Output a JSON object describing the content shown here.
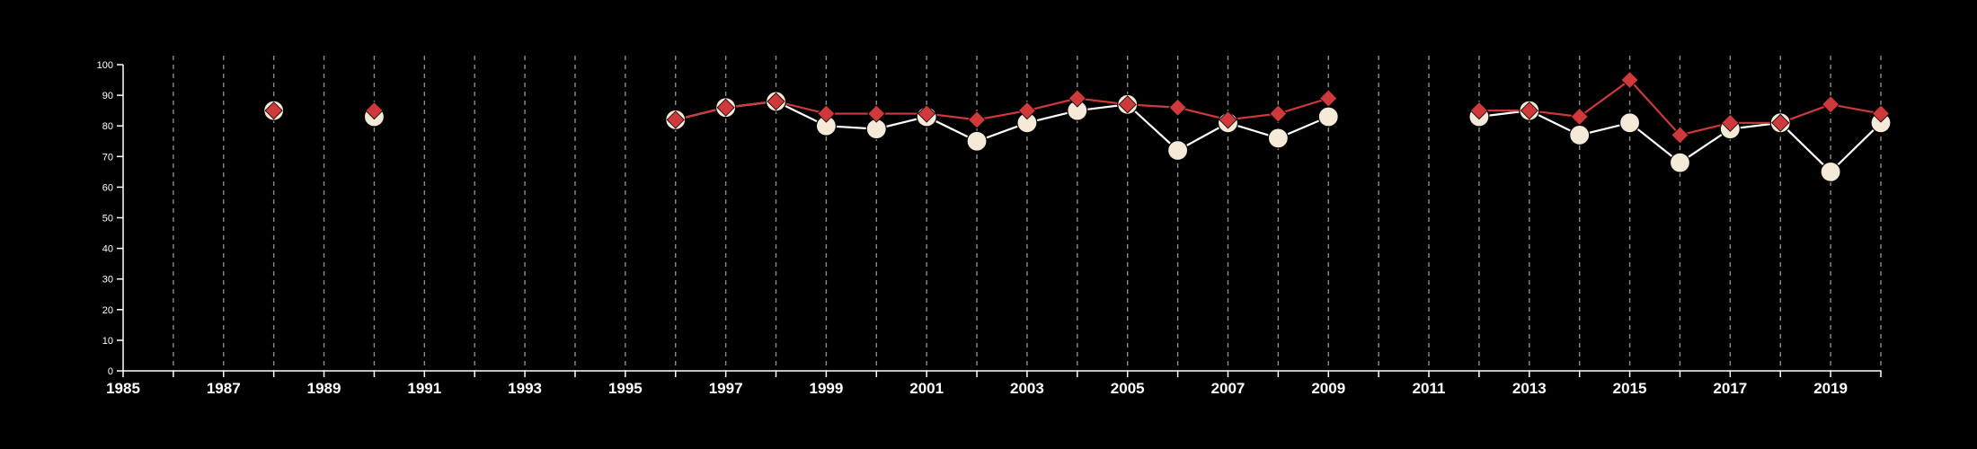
{
  "chart_data": {
    "type": "line",
    "title": "",
    "xlabel": "",
    "ylabel": "",
    "xlim": [
      1985,
      2020
    ],
    "ylim": [
      0,
      100
    ],
    "x_tick_labels": [
      "1985",
      "1987",
      "1989",
      "1991",
      "1993",
      "1995",
      "1997",
      "1999",
      "2001",
      "2003",
      "2005",
      "2007",
      "2009",
      "2011",
      "2013",
      "2015",
      "2017",
      "2019"
    ],
    "y_tick_labels": [
      "0",
      "10",
      "20",
      "30",
      "40",
      "50",
      "60",
      "70",
      "80",
      "90",
      "100"
    ],
    "grid": "vertical dashed lines at each year",
    "series": [
      {
        "marker": "circle",
        "color": "#f5ead7",
        "line_color": "#ffffff",
        "points": [
          [
            1988,
            85
          ],
          [
            1990,
            83
          ],
          [
            1996,
            82
          ],
          [
            1997,
            86
          ],
          [
            1998,
            88
          ],
          [
            1999,
            80
          ],
          [
            2000,
            79
          ],
          [
            2001,
            83
          ],
          [
            2002,
            75
          ],
          [
            2003,
            81
          ],
          [
            2004,
            85
          ],
          [
            2005,
            87
          ],
          [
            2006,
            72
          ],
          [
            2007,
            81
          ],
          [
            2008,
            76
          ],
          [
            2009,
            83
          ],
          [
            2012,
            83
          ],
          [
            2013,
            85
          ],
          [
            2014,
            77
          ],
          [
            2015,
            81
          ],
          [
            2016,
            68
          ],
          [
            2017,
            79
          ],
          [
            2018,
            81
          ],
          [
            2019,
            65
          ],
          [
            2020,
            81
          ]
        ]
      },
      {
        "marker": "diamond",
        "color": "#d0393b",
        "line_color": "#d0393b",
        "points": [
          [
            1988,
            85
          ],
          [
            1990,
            85
          ],
          [
            1996,
            82
          ],
          [
            1997,
            86
          ],
          [
            1998,
            88
          ],
          [
            1999,
            84
          ],
          [
            2000,
            84
          ],
          [
            2001,
            84
          ],
          [
            2002,
            82
          ],
          [
            2003,
            85
          ],
          [
            2004,
            89
          ],
          [
            2005,
            87
          ],
          [
            2006,
            86
          ],
          [
            2007,
            82
          ],
          [
            2008,
            84
          ],
          [
            2009,
            89
          ],
          [
            2012,
            85
          ],
          [
            2013,
            85
          ],
          [
            2014,
            83
          ],
          [
            2015,
            95
          ],
          [
            2016,
            77
          ],
          [
            2017,
            81
          ],
          [
            2018,
            81
          ],
          [
            2019,
            87
          ],
          [
            2020,
            84
          ]
        ]
      }
    ]
  }
}
